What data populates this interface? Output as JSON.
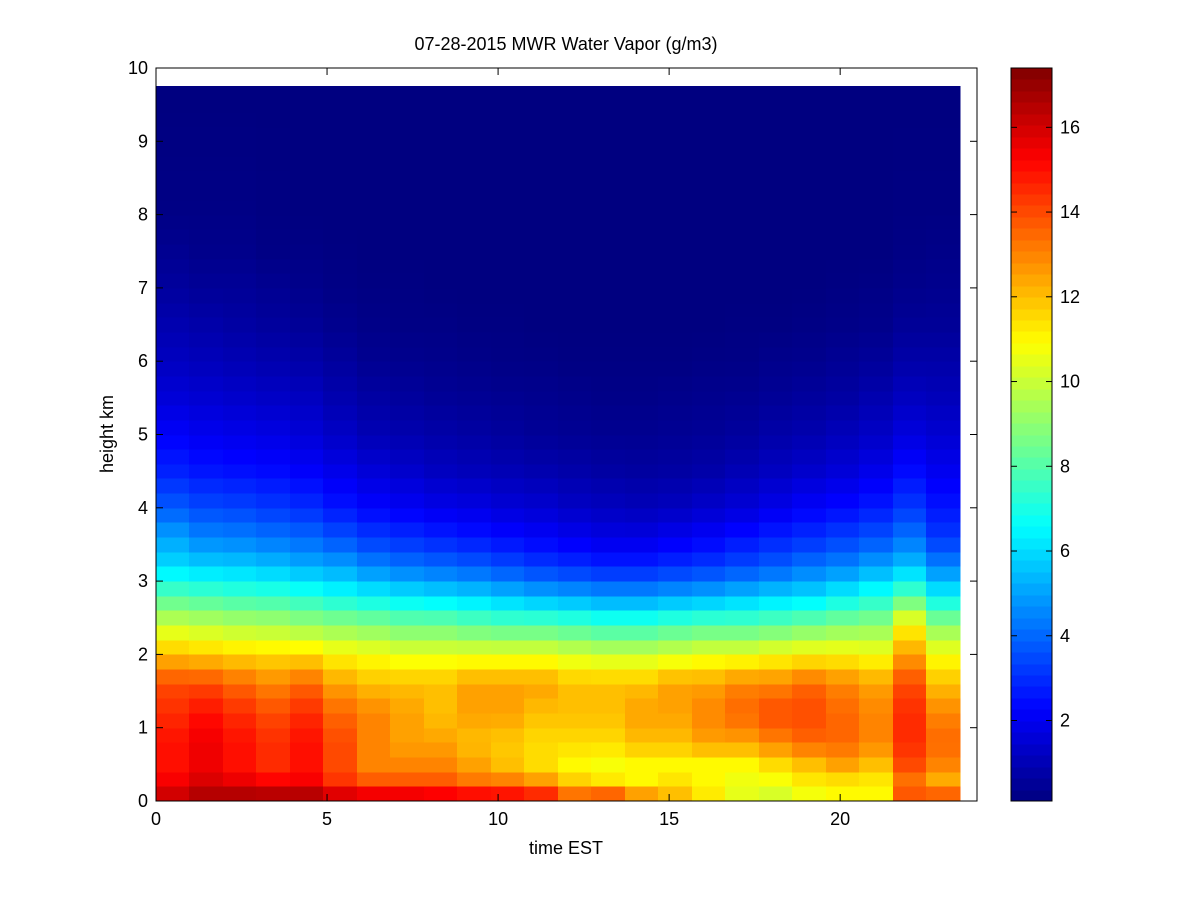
{
  "chart_data": {
    "type": "heatmap",
    "title": "07-28-2015 MWR Water Vapor (g/m3)",
    "xlabel": "time EST",
    "ylabel": "height km",
    "xlim": [
      0,
      24
    ],
    "ylim": [
      0,
      10
    ],
    "data_extent": {
      "x_start": 0,
      "x_end": 23.5,
      "y_start": 0,
      "y_end": 9.75
    },
    "x_ticks": [
      "0",
      "5",
      "10",
      "15",
      "20"
    ],
    "x_tick_values": [
      0,
      5,
      10,
      15,
      20
    ],
    "y_ticks": [
      "0",
      "1",
      "2",
      "3",
      "4",
      "5",
      "6",
      "7",
      "8",
      "9",
      "10"
    ],
    "y_tick_values": [
      0,
      1,
      2,
      3,
      4,
      5,
      6,
      7,
      8,
      9,
      10
    ],
    "colormap": "jet",
    "colorbar": {
      "range": [
        0.1,
        17.4
      ],
      "ticks": [
        "2",
        "4",
        "6",
        "8",
        "10",
        "12",
        "14",
        "16"
      ],
      "tick_values": [
        2,
        4,
        6,
        8,
        10,
        12,
        14,
        16
      ]
    },
    "time_columns_hours": [
      0.5,
      1.5,
      2.5,
      3.5,
      4.5,
      5.5,
      6.5,
      7.5,
      8.5,
      9.5,
      10.5,
      11.5,
      12.5,
      13.5,
      14.5,
      15.5,
      16.5,
      17.5,
      18.5,
      19.5,
      20.5,
      21.5,
      22.5,
      23.5
    ],
    "profile_heights_km": [
      0,
      0.2,
      0.5,
      0.8,
      1.2,
      1.6,
      2.0,
      2.4,
      2.8,
      3.2,
      3.6,
      4.0,
      4.5,
      5.0,
      5.5,
      6.0,
      6.5,
      7.0,
      7.5,
      8.0,
      9.75
    ],
    "profiles_gm3": [
      [
        16.5,
        15.5,
        15.0,
        15.0,
        14.5,
        14.0,
        12.0,
        10.0,
        8.0,
        6.0,
        5.0,
        3.8,
        2.8,
        2.2,
        1.6,
        1.2,
        0.9,
        0.6,
        0.4,
        0.2,
        0.1
      ],
      [
        17.0,
        16.0,
        15.5,
        15.5,
        15.0,
        14.0,
        11.8,
        9.8,
        7.8,
        5.8,
        4.5,
        3.5,
        2.6,
        2.0,
        1.5,
        1.1,
        0.8,
        0.5,
        0.3,
        0.2,
        0.1
      ],
      [
        17.2,
        15.8,
        15.0,
        15.0,
        14.5,
        13.5,
        11.6,
        9.6,
        7.6,
        5.7,
        4.4,
        3.4,
        2.5,
        1.9,
        1.4,
        1.0,
        0.7,
        0.5,
        0.3,
        0.2,
        0.1
      ],
      [
        17.3,
        15.5,
        14.5,
        14.5,
        14.0,
        13.0,
        11.5,
        9.5,
        7.5,
        5.5,
        4.2,
        3.2,
        2.4,
        1.8,
        1.3,
        0.9,
        0.6,
        0.4,
        0.2,
        0.15,
        0.1
      ],
      [
        17.4,
        15.5,
        15.0,
        15.0,
        14.5,
        13.5,
        11.5,
        9.2,
        7.2,
        5.2,
        4.0,
        3.0,
        2.2,
        1.6,
        1.2,
        0.8,
        0.5,
        0.3,
        0.2,
        0.1,
        0.1
      ],
      [
        17.0,
        14.5,
        14.0,
        14.0,
        13.5,
        12.5,
        11.0,
        9.0,
        6.8,
        5.0,
        3.6,
        2.6,
        1.9,
        1.3,
        0.9,
        0.6,
        0.35,
        0.2,
        0.15,
        0.1,
        0.1
      ],
      [
        16.8,
        14.0,
        13.0,
        13.0,
        13.0,
        12.0,
        10.8,
        8.8,
        6.5,
        4.5,
        3.2,
        2.3,
        1.6,
        1.0,
        0.7,
        0.4,
        0.25,
        0.15,
        0.1,
        0.1,
        0.1
      ],
      [
        16.8,
        14.0,
        13.0,
        12.5,
        12.5,
        12.0,
        10.5,
        8.5,
        6.2,
        4.2,
        3.0,
        2.1,
        1.4,
        0.9,
        0.6,
        0.35,
        0.2,
        0.15,
        0.1,
        0.1,
        0.1
      ],
      [
        16.5,
        14.0,
        13.0,
        12.5,
        12.0,
        12.0,
        10.5,
        8.5,
        6.0,
        4.0,
        2.8,
        1.9,
        1.2,
        0.8,
        0.5,
        0.3,
        0.2,
        0.1,
        0.1,
        0.1,
        0.1
      ],
      [
        16.5,
        13.5,
        12.5,
        12.0,
        12.5,
        12.5,
        10.5,
        8.2,
        5.8,
        3.8,
        2.6,
        1.8,
        1.1,
        0.7,
        0.45,
        0.25,
        0.15,
        0.1,
        0.1,
        0.1,
        0.1
      ],
      [
        16.3,
        13.5,
        12.0,
        11.8,
        12.5,
        12.5,
        10.5,
        8.0,
        5.5,
        3.5,
        2.4,
        1.6,
        1.0,
        0.6,
        0.4,
        0.2,
        0.15,
        0.1,
        0.1,
        0.1,
        0.1
      ],
      [
        16.0,
        13.0,
        11.5,
        11.5,
        12.0,
        12.5,
        10.5,
        8.0,
        5.2,
        3.2,
        2.2,
        1.5,
        0.9,
        0.5,
        0.35,
        0.2,
        0.1,
        0.1,
        0.1,
        0.1,
        0.1
      ],
      [
        14.5,
        12.0,
        11.0,
        11.5,
        12.0,
        12.0,
        10.2,
        7.8,
        5.0,
        3.0,
        2.0,
        1.3,
        0.8,
        0.45,
        0.3,
        0.15,
        0.1,
        0.1,
        0.1,
        0.1,
        0.1
      ],
      [
        15.5,
        11.5,
        10.8,
        11.5,
        12.0,
        12.0,
        10.0,
        7.5,
        4.8,
        2.8,
        1.8,
        1.2,
        0.7,
        0.4,
        0.25,
        0.15,
        0.1,
        0.1,
        0.1,
        0.1,
        0.1
      ],
      [
        14.0,
        11.0,
        11.0,
        12.0,
        12.5,
        12.0,
        10.0,
        7.5,
        4.8,
        2.8,
        1.8,
        1.1,
        0.65,
        0.4,
        0.25,
        0.15,
        0.1,
        0.1,
        0.1,
        0.1,
        0.1
      ],
      [
        12.5,
        11.5,
        11.0,
        12.0,
        12.5,
        12.5,
        10.2,
        7.8,
        5.0,
        3.0,
        2.0,
        1.2,
        0.7,
        0.45,
        0.3,
        0.15,
        0.1,
        0.1,
        0.1,
        0.1,
        0.1
      ],
      [
        11.5,
        11.0,
        11.0,
        12.5,
        13.0,
        12.5,
        10.5,
        8.0,
        5.2,
        3.2,
        2.2,
        1.4,
        0.8,
        0.5,
        0.35,
        0.2,
        0.1,
        0.1,
        0.1,
        0.1,
        0.1
      ],
      [
        10.5,
        10.5,
        11.0,
        12.5,
        13.5,
        13.0,
        10.5,
        8.0,
        5.5,
        3.5,
        2.5,
        1.6,
        1.0,
        0.6,
        0.4,
        0.2,
        0.15,
        0.1,
        0.1,
        0.1,
        0.1
      ],
      [
        10.0,
        10.5,
        11.5,
        13.0,
        14.0,
        13.0,
        10.8,
        8.2,
        5.8,
        3.8,
        2.8,
        1.9,
        1.2,
        0.8,
        0.5,
        0.3,
        0.15,
        0.1,
        0.1,
        0.1,
        0.1
      ],
      [
        10.5,
        11.0,
        12.0,
        13.5,
        14.0,
        13.5,
        11.0,
        8.5,
        6.0,
        4.2,
        3.0,
        2.2,
        1.4,
        0.9,
        0.6,
        0.35,
        0.2,
        0.1,
        0.1,
        0.1,
        0.1
      ],
      [
        11.0,
        11.0,
        12.5,
        13.5,
        13.5,
        13.0,
        11.0,
        8.8,
        6.5,
        4.5,
        3.3,
        2.4,
        1.6,
        1.1,
        0.7,
        0.45,
        0.25,
        0.15,
        0.1,
        0.1,
        0.1
      ],
      [
        11.0,
        11.0,
        12.0,
        13.0,
        13.0,
        12.5,
        10.8,
        9.0,
        7.0,
        5.0,
        3.6,
        2.7,
        1.9,
        1.3,
        0.9,
        0.55,
        0.3,
        0.2,
        0.1,
        0.1,
        0.1
      ],
      [
        14.5,
        13.0,
        14.0,
        14.5,
        14.5,
        14.0,
        12.5,
        11.0,
        8.0,
        5.5,
        4.2,
        3.2,
        2.4,
        1.7,
        1.2,
        0.8,
        0.5,
        0.3,
        0.2,
        0.15,
        0.1
      ],
      [
        15.0,
        12.0,
        13.0,
        13.5,
        13.0,
        12.0,
        10.8,
        9.0,
        6.5,
        4.5,
        3.2,
        2.6,
        2.0,
        1.5,
        1.1,
        0.8,
        0.5,
        0.35,
        0.25,
        0.15,
        0.1
      ]
    ]
  }
}
